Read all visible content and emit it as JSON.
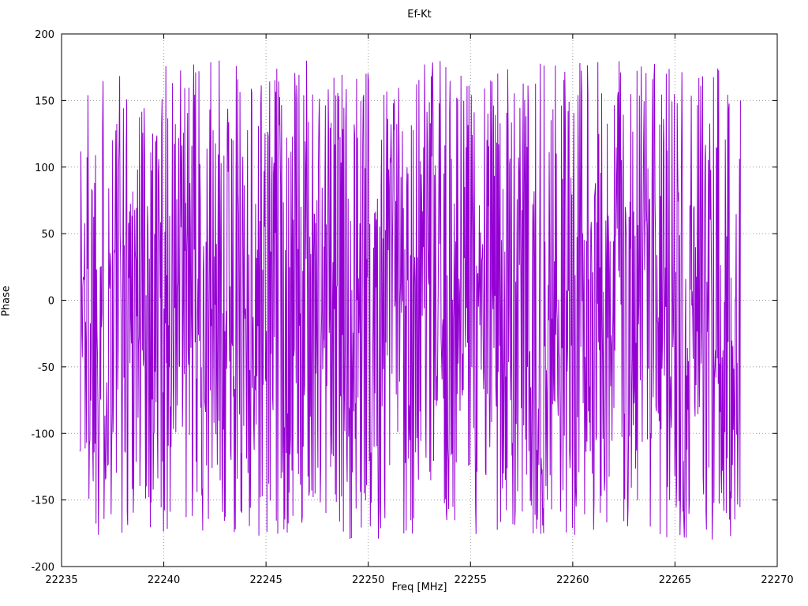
{
  "title": "Ef-Kt",
  "chart_data": {
    "type": "line",
    "title": "Ef-Kt",
    "xlabel": "Freq [MHz]",
    "ylabel": "Phase",
    "xlim": [
      22235,
      22270
    ],
    "ylim": [
      -200,
      200
    ],
    "x_ticks": [
      22235,
      22240,
      22245,
      22250,
      22255,
      22260,
      22265,
      22270
    ],
    "y_ticks": [
      -200,
      -150,
      -100,
      -50,
      0,
      50,
      100,
      150,
      200
    ],
    "grid": "dotted",
    "legend": "none",
    "grid_color": "#9a9a9a",
    "border_color": "#000000",
    "series": [
      {
        "name": "Ef-Kt phase",
        "color": "#9400d3",
        "x_start": 22235.9,
        "x_end": 22268.2,
        "y_min": -180,
        "y_max": 180,
        "description": "Dense uniformly-distributed random phase noise (wrapped phase) between -180 and +180 degrees across the measured band; individual samples not resolvable at plot scale",
        "synthesis": {
          "n_points": 1400,
          "seed": 1337
        }
      }
    ]
  }
}
